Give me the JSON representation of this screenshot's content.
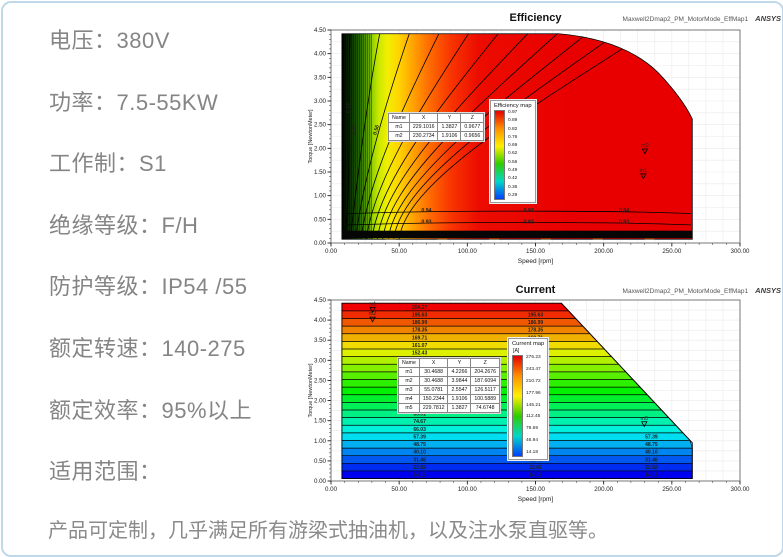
{
  "specs": [
    "电压：380V",
    "功率：7.5-55KW",
    "工作制：S1",
    "绝缘等级：F/H",
    "防护等级：IP54 /55",
    "额定转速：140-275",
    "额定效率：95%以上",
    "适用范围："
  ],
  "note": "产品可定制，几乎满足所有游梁式抽油机，以及注水泵直驱等。",
  "colors": {
    "card_border": "#bfd8ea",
    "spec_text": "#858585",
    "map_red": "#e80000",
    "map_blue": "#0040ff"
  },
  "chart_data": [
    {
      "type": "contour",
      "title": "Efficiency",
      "meta": "Maxwell2Dmap2_PM_MotorMode_EffMap1",
      "brand": "ANSYS",
      "xlabel": "Speed [rpm]",
      "ylabel": "Torque [NewtonMeter]",
      "xlim": [
        0,
        300
      ],
      "ylim": [
        0,
        4.5
      ],
      "x_ticks": [
        "0.00",
        "50.00",
        "100.00",
        "150.00",
        "200.00",
        "250.00",
        "300.00"
      ],
      "y_ticks": [
        "0.00",
        "0.50",
        "1.00",
        "1.50",
        "2.00",
        "2.50",
        "3.00",
        "3.50",
        "4.00",
        "4.50"
      ],
      "grid": true,
      "legend": {
        "title": "Efficiency map",
        "values": [
          "0.97",
          "0.89",
          "0.82",
          "0.76",
          "0.69",
          "0.62",
          "0.56",
          "0.49",
          "0.42",
          "0.36",
          "0.29"
        ]
      },
      "contour_labels": {
        "fan": [
          "0.22",
          "0.43",
          "0.56",
          "0.69",
          "0.76",
          "0.82",
          "0.86",
          "0.88",
          "0.89",
          "0.90",
          "0.92"
        ],
        "horizontal": [
          "0.94",
          "0.93"
        ]
      },
      "markers": [
        {
          "name": "m1",
          "x": 229.1016,
          "y": 1.3827
        },
        {
          "name": "m2",
          "x": 230.2734,
          "y": 1.9106
        }
      ],
      "table": {
        "headers": [
          "Name",
          "X",
          "Y",
          "Z"
        ],
        "rows": [
          [
            "m1",
            "229.1016",
            "1.3827",
            "0.9677"
          ],
          [
            "m2",
            "230.2734",
            "1.9106",
            "0.9656"
          ]
        ]
      },
      "envelope": {
        "x_start": 8,
        "flat_top_until": 167,
        "top_torque": 4.42,
        "x_end": 265,
        "right_torque": 2.62,
        "bottom_torque": 0.08
      }
    },
    {
      "type": "contour-bands",
      "title": "Current",
      "meta": "Maxwell2Dmap2_PM_MotorMode_EffMap1",
      "brand": "ANSYS",
      "xlabel": "Speed [rpm]",
      "ylabel": "Torque [NewtonMeter]",
      "xlim": [
        0,
        300
      ],
      "ylim": [
        0,
        4.5
      ],
      "x_ticks": [
        "0.00",
        "50.00",
        "100.00",
        "150.00",
        "200.00",
        "250.00",
        "300.00"
      ],
      "y_ticks": [
        "0.00",
        "0.50",
        "1.00",
        "1.50",
        "2.00",
        "2.50",
        "3.00",
        "3.50",
        "4.00",
        "4.50"
      ],
      "grid": true,
      "legend": {
        "title": "Current map",
        "unit": "[A]",
        "values": [
          "276.23",
          "243.47",
          "210.72",
          "177.96",
          "145.21",
          "112.45",
          "79.69",
          "46.94",
          "14.18"
        ]
      },
      "bands": [
        "204.27",
        "195.63",
        "186.99",
        "178.35",
        "169.71",
        "161.07",
        "152.43",
        "143.79",
        "135.15",
        "126.51",
        "117.87",
        "109.23",
        "100.59",
        "91.95",
        "83.31",
        "74.67",
        "66.03",
        "57.39",
        "48.75",
        "40.10",
        "31.46",
        "22.82",
        "14.18"
      ],
      "table": {
        "headers": [
          "Name",
          "X",
          "Y",
          "Z"
        ],
        "rows": [
          [
            "m1",
            "30.4688",
            "4.2266",
            "204.2676"
          ],
          [
            "m2",
            "30.4688",
            "3.9844",
            "187.6094"
          ],
          [
            "m3",
            "55.0781",
            "2.5547",
            "126.5117"
          ],
          [
            "m4",
            "150.2344",
            "1.9106",
            "100.5889"
          ],
          [
            "m5",
            "229.7812",
            "1.3827",
            "74.6748"
          ]
        ]
      },
      "envelope": {
        "x_start": 8,
        "flat_top_until": 169,
        "top_torque": 4.42,
        "x_end": 265,
        "bend_torque": 0.95,
        "bottom_torque": 0.06
      }
    }
  ]
}
